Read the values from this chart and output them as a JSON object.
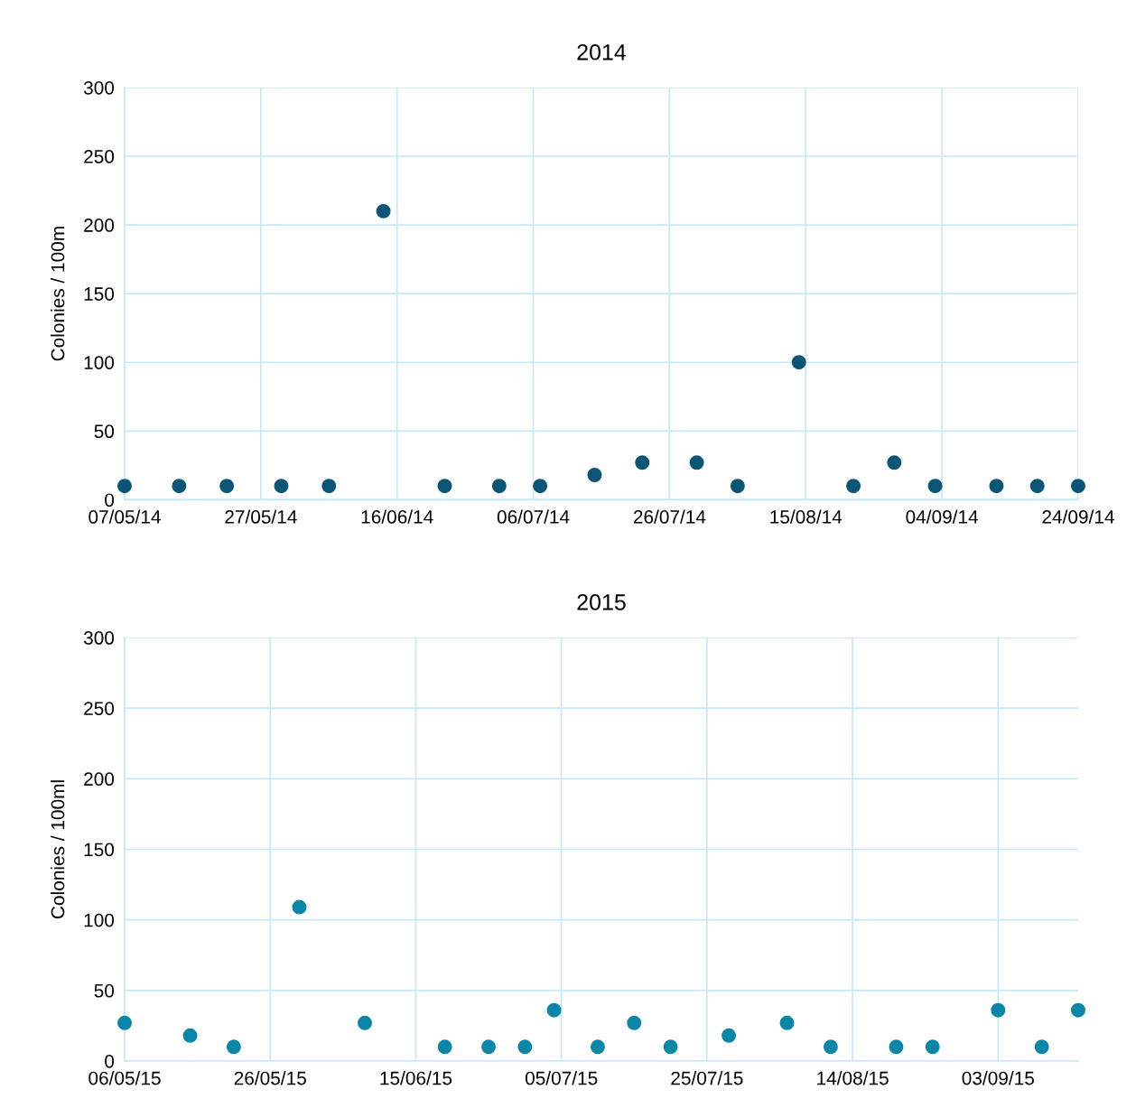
{
  "chart_data": [
    {
      "type": "scatter",
      "title": "2014",
      "ylabel": "Colonies / 100m",
      "grid": true,
      "marker": "circle",
      "x": [
        "2014-05-07",
        "2014-05-15",
        "2014-05-22",
        "2014-05-30",
        "2014-06-06",
        "2014-06-14",
        "2014-06-23",
        "2014-07-01",
        "2014-07-07",
        "2014-07-15",
        "2014-07-22",
        "2014-07-30",
        "2014-08-05",
        "2014-08-14",
        "2014-08-22",
        "2014-08-28",
        "2014-09-03",
        "2014-09-12",
        "2014-09-18",
        "2014-09-24"
      ],
      "series": [
        {
          "color": "#0b5577",
          "values": [
            10,
            10,
            10,
            10,
            10,
            210,
            10,
            10,
            10,
            18,
            27,
            27,
            10,
            100,
            10,
            27,
            10,
            10,
            10,
            10
          ]
        }
      ],
      "xlim": [
        "2014-05-07",
        "2014-09-24"
      ],
      "xticks": [
        {
          "value": "2014-05-07",
          "label": "07/05/14"
        },
        {
          "value": "2014-05-27",
          "label": "27/05/14"
        },
        {
          "value": "2014-06-16",
          "label": "16/06/14"
        },
        {
          "value": "2014-07-06",
          "label": "06/07/14"
        },
        {
          "value": "2014-07-26",
          "label": "26/07/14"
        },
        {
          "value": "2014-08-15",
          "label": "15/08/14"
        },
        {
          "value": "2014-09-04",
          "label": "04/09/14"
        },
        {
          "value": "2014-09-24",
          "label": "24/09/14"
        }
      ],
      "ylim": [
        0,
        300
      ],
      "yticks": [
        0,
        50,
        100,
        150,
        200,
        250,
        300
      ]
    },
    {
      "type": "scatter",
      "title": "2015",
      "ylabel": "Colonies / 100ml",
      "grid": true,
      "marker": "circle",
      "x": [
        "2015-05-06",
        "2015-05-15",
        "2015-05-21",
        "2015-05-30",
        "2015-06-08",
        "2015-06-19",
        "2015-06-25",
        "2015-06-30",
        "2015-07-04",
        "2015-07-10",
        "2015-07-15",
        "2015-07-20",
        "2015-07-28",
        "2015-08-05",
        "2015-08-11",
        "2015-08-20",
        "2015-08-25",
        "2015-09-03",
        "2015-09-09",
        "2015-09-14"
      ],
      "series": [
        {
          "color": "#0a86a8",
          "values": [
            27,
            18,
            10,
            109,
            27,
            10,
            10,
            10,
            36,
            10,
            27,
            10,
            18,
            27,
            10,
            10,
            10,
            36,
            10,
            36
          ]
        }
      ],
      "xlim": [
        "2015-05-06",
        "2015-09-14"
      ],
      "xticks": [
        {
          "value": "2015-05-06",
          "label": "06/05/15"
        },
        {
          "value": "2015-05-26",
          "label": "26/05/15"
        },
        {
          "value": "2015-06-15",
          "label": "15/06/15"
        },
        {
          "value": "2015-07-05",
          "label": "05/07/15"
        },
        {
          "value": "2015-07-25",
          "label": "25/07/15"
        },
        {
          "value": "2015-08-14",
          "label": "14/08/15"
        },
        {
          "value": "2015-09-03",
          "label": "03/09/15"
        }
      ],
      "ylim": [
        0,
        300
      ],
      "yticks": [
        0,
        50,
        100,
        150,
        200,
        250,
        300
      ]
    }
  ]
}
